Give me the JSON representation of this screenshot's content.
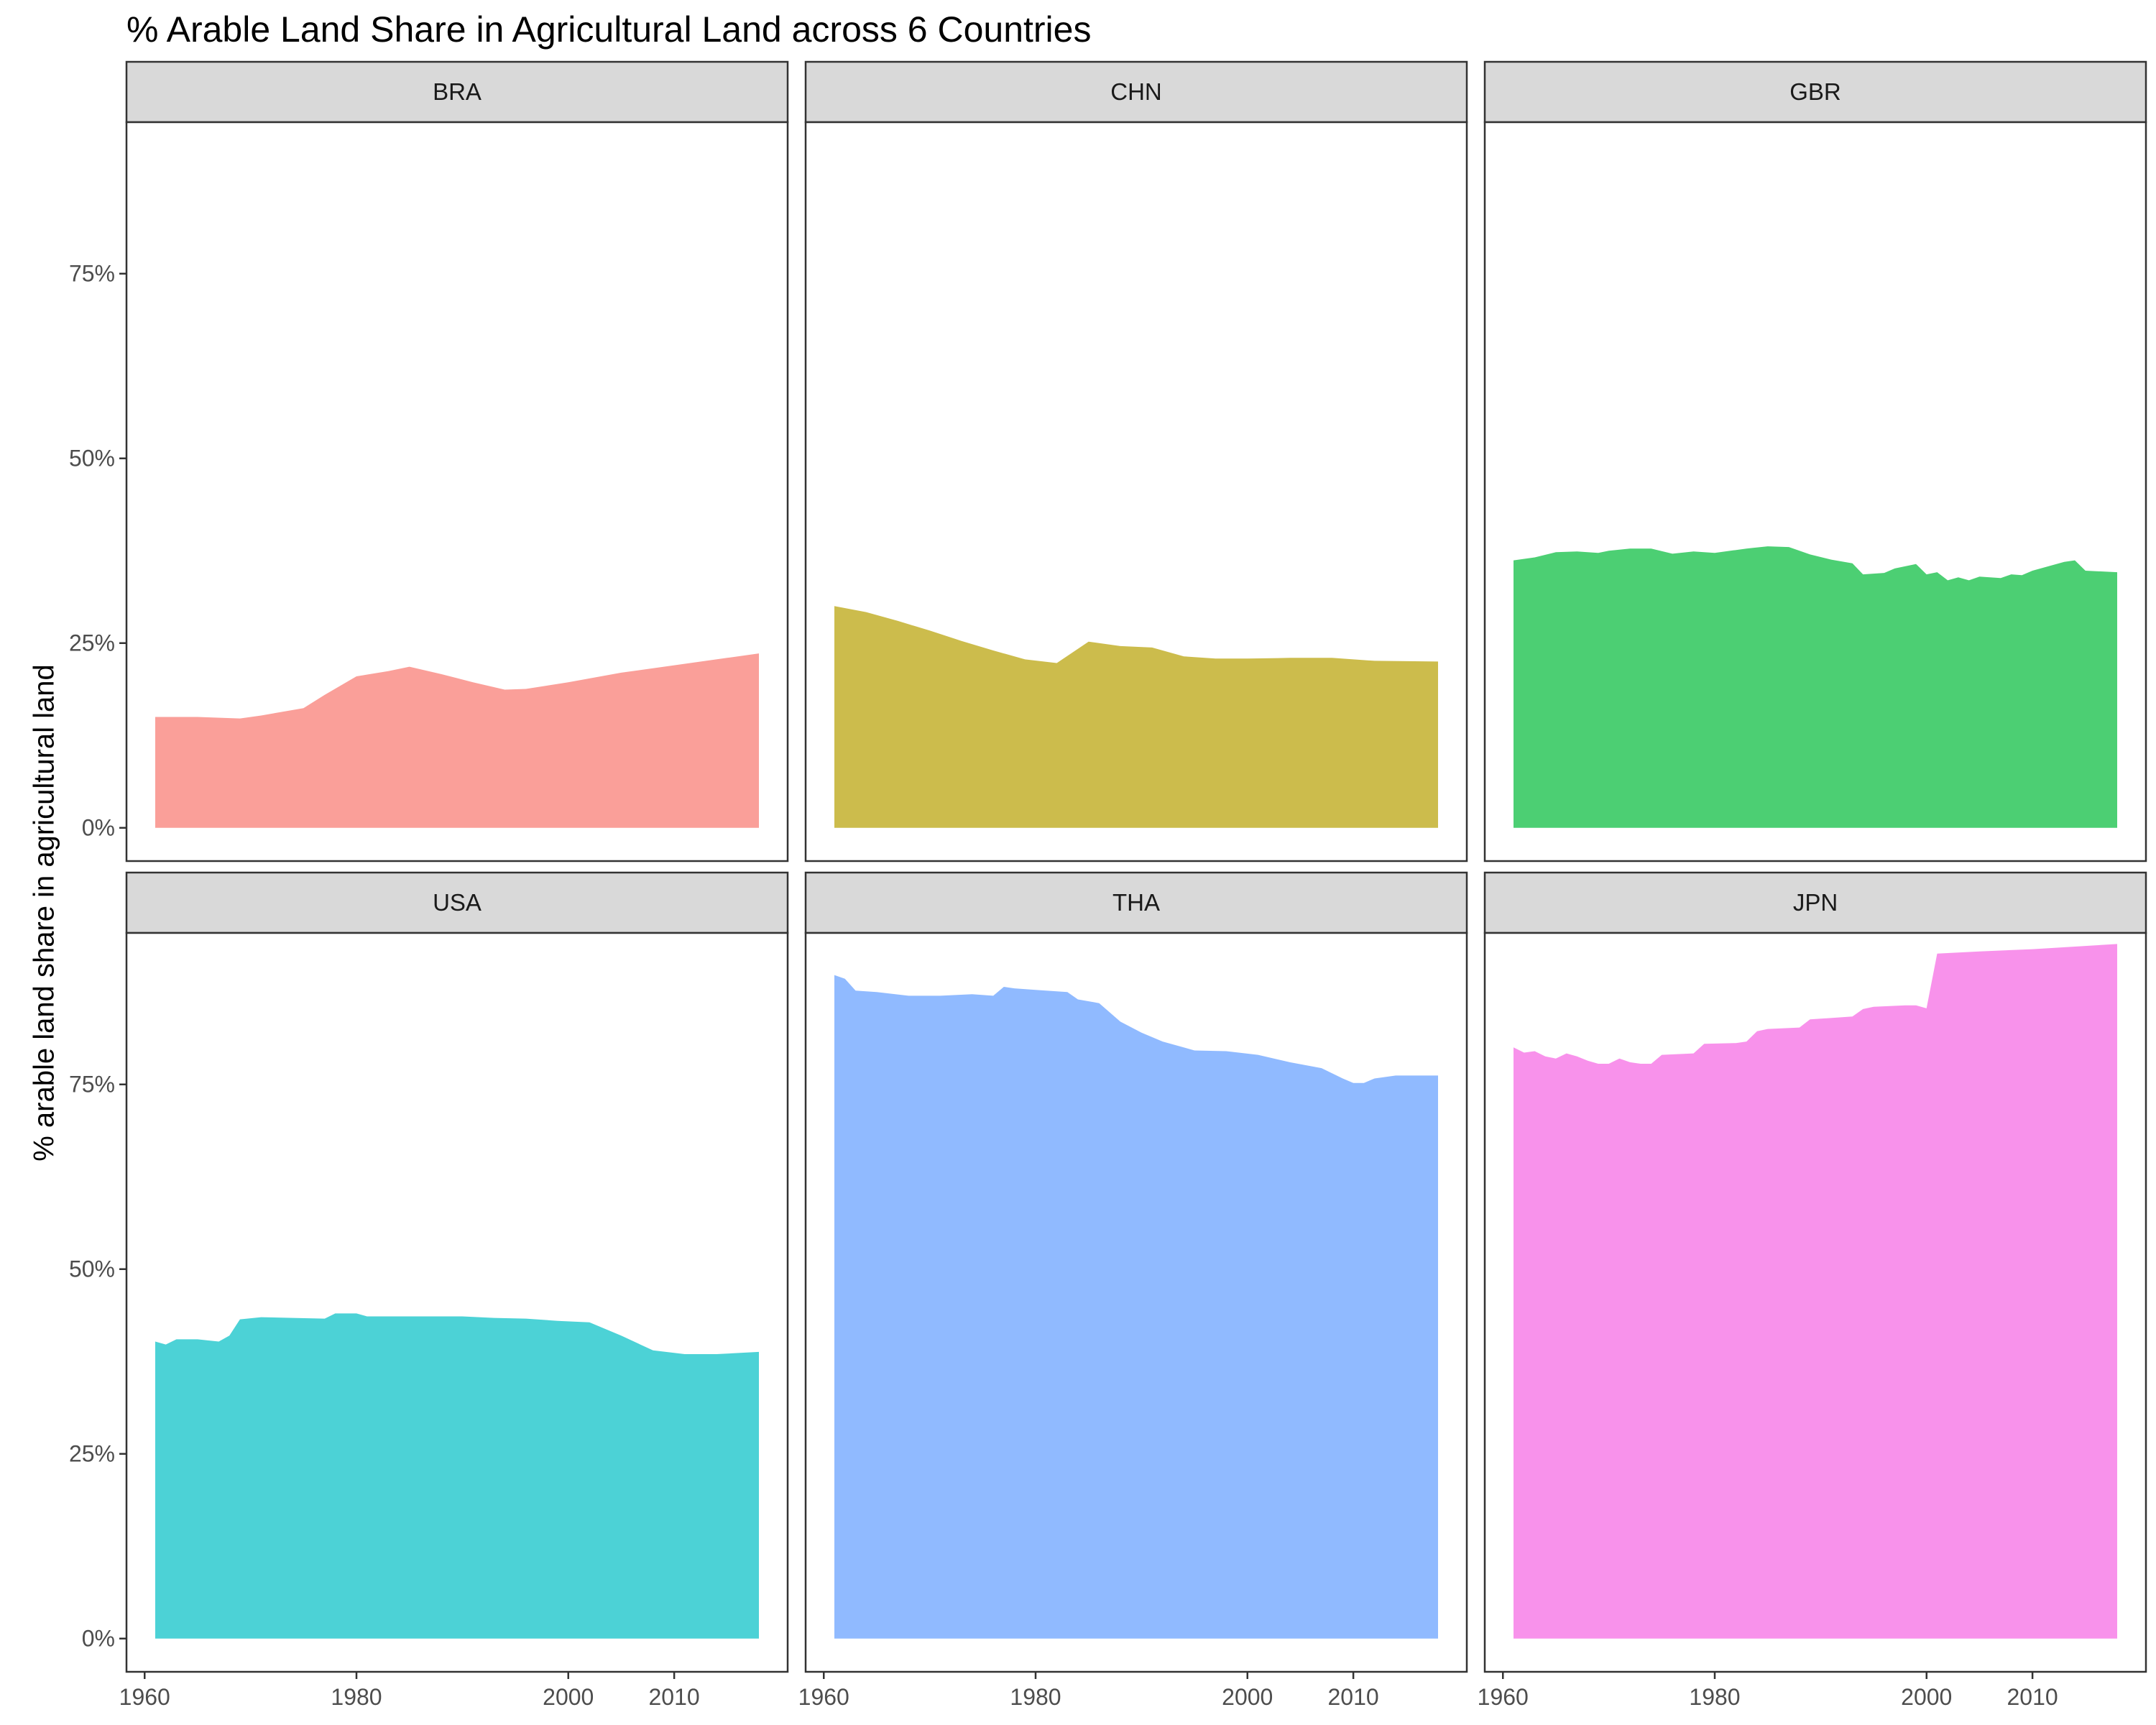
{
  "chart_data": {
    "type": "area",
    "title": "% Arable Land Share in Agricultural Land across 6 Countries",
    "ylabel": "% arable land share in agricultural land",
    "xlabel": "",
    "ylim": [
      0,
      1
    ],
    "y_ticks": [
      0,
      0.25,
      0.5,
      0.75
    ],
    "y_tick_labels": [
      "0%",
      "25%",
      "50%",
      "75%"
    ],
    "xlim": [
      1961,
      2018
    ],
    "x_ticks": [
      1960,
      1980,
      2000,
      2010
    ],
    "x_tick_labels": [
      "1960",
      "1980",
      "2000",
      "2010"
    ],
    "grid": false,
    "legend": "none",
    "facets": [
      {
        "name": "BRA",
        "color": "#F8766D",
        "x": [
          1961,
          1965,
          1969,
          1971,
          1975,
          1977,
          1980,
          1983,
          1985,
          1988,
          1991,
          1994,
          1996,
          2000,
          2005,
          2010,
          2015,
          2018
        ],
        "y": [
          0.15,
          0.15,
          0.148,
          0.152,
          0.162,
          0.18,
          0.205,
          0.212,
          0.218,
          0.208,
          0.197,
          0.187,
          0.188,
          0.197,
          0.21,
          0.22,
          0.23,
          0.236
        ]
      },
      {
        "name": "CHN",
        "color": "#B79F00",
        "x": [
          1961,
          1964,
          1967,
          1970,
          1973,
          1976,
          1979,
          1982,
          1985,
          1988,
          1991,
          1994,
          1997,
          2000,
          2004,
          2008,
          2012,
          2018
        ],
        "y": [
          0.3,
          0.292,
          0.28,
          0.267,
          0.253,
          0.24,
          0.228,
          0.223,
          0.252,
          0.246,
          0.244,
          0.232,
          0.229,
          0.229,
          0.23,
          0.23,
          0.226,
          0.225
        ]
      },
      {
        "name": "GBR",
        "color": "#00BA38",
        "x": [
          1961,
          1963,
          1965,
          1967,
          1969,
          1970,
          1972,
          1974,
          1976,
          1978,
          1980,
          1983,
          1985,
          1987,
          1989,
          1991,
          1993,
          1994,
          1996,
          1997,
          1999,
          2000,
          2001,
          2002,
          2003,
          2004,
          2005,
          2007,
          2008,
          2009,
          2010,
          2013,
          2014,
          2015,
          2018
        ],
        "y": [
          0.362,
          0.366,
          0.373,
          0.374,
          0.372,
          0.375,
          0.378,
          0.378,
          0.371,
          0.374,
          0.372,
          0.378,
          0.381,
          0.38,
          0.37,
          0.363,
          0.358,
          0.343,
          0.345,
          0.351,
          0.357,
          0.343,
          0.346,
          0.335,
          0.339,
          0.335,
          0.34,
          0.338,
          0.343,
          0.342,
          0.348,
          0.36,
          0.362,
          0.348,
          0.346
        ]
      },
      {
        "name": "USA",
        "color": "#00BFC4",
        "x": [
          1961,
          1962,
          1963,
          1965,
          1967,
          1968,
          1969,
          1971,
          1974,
          1977,
          1978,
          1980,
          1981,
          1984,
          1987,
          1990,
          1993,
          1996,
          1999,
          2002,
          2005,
          2008,
          2011,
          2014,
          2018
        ],
        "y": [
          0.402,
          0.398,
          0.405,
          0.405,
          0.402,
          0.41,
          0.432,
          0.435,
          0.434,
          0.433,
          0.44,
          0.44,
          0.436,
          0.436,
          0.436,
          0.436,
          0.434,
          0.433,
          0.43,
          0.428,
          0.41,
          0.39,
          0.385,
          0.385,
          0.388
        ]
      },
      {
        "name": "THA",
        "color": "#619CFF",
        "x": [
          1961,
          1962,
          1963,
          1965,
          1968,
          1971,
          1974,
          1976,
          1977,
          1978,
          1980,
          1983,
          1984,
          1986,
          1988,
          1990,
          1992,
          1995,
          1998,
          2001,
          2004,
          2007,
          2009,
          2010,
          2011,
          2012,
          2014,
          2018
        ],
        "y": [
          0.898,
          0.893,
          0.877,
          0.875,
          0.87,
          0.87,
          0.872,
          0.87,
          0.882,
          0.88,
          0.878,
          0.875,
          0.865,
          0.86,
          0.835,
          0.82,
          0.808,
          0.796,
          0.795,
          0.79,
          0.78,
          0.772,
          0.758,
          0.752,
          0.752,
          0.758,
          0.762,
          0.762
        ]
      },
      {
        "name": "JPN",
        "color": "#F564E3",
        "x": [
          1961,
          1962,
          1963,
          1964,
          1965,
          1966,
          1967,
          1968,
          1969,
          1970,
          1971,
          1972,
          1973,
          1974,
          1975,
          1978,
          1979,
          1982,
          1983,
          1984,
          1985,
          1988,
          1989,
          1993,
          1994,
          1995,
          1998,
          1999,
          2000,
          2001,
          2005,
          2010,
          2018
        ],
        "y": [
          0.8,
          0.793,
          0.795,
          0.788,
          0.785,
          0.792,
          0.788,
          0.782,
          0.778,
          0.778,
          0.785,
          0.78,
          0.778,
          0.778,
          0.79,
          0.792,
          0.805,
          0.806,
          0.808,
          0.822,
          0.825,
          0.827,
          0.838,
          0.842,
          0.852,
          0.855,
          0.857,
          0.857,
          0.853,
          0.927,
          0.93,
          0.933,
          0.94
        ]
      }
    ]
  }
}
